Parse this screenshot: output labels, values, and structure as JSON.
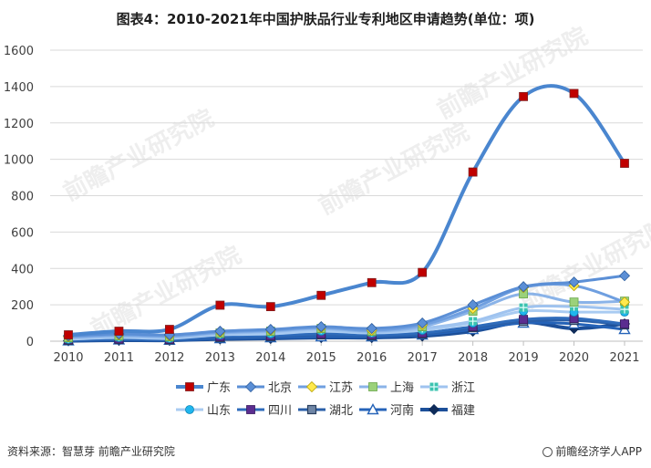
{
  "title": "图表4：2010-2021年中国护肤品行业专利地区申请趋势(单位：项)",
  "source": "资料来源：智慧芽 前瞻产业研究院",
  "brand": "前瞻经济学人APP",
  "watermark": "前瞻产业研究院",
  "chart_data": {
    "type": "line",
    "title": "图表4：2010-2021年中国护肤品行业专利地区申请趋势(单位：项)",
    "xlabel": "",
    "ylabel": "",
    "x": [
      "2010",
      "2011",
      "2012",
      "2013",
      "2014",
      "2015",
      "2016",
      "2017",
      "2018",
      "2019",
      "2020",
      "2021"
    ],
    "ylim": [
      0,
      1600
    ],
    "yticks": [
      0,
      200,
      400,
      600,
      800,
      1000,
      1200,
      1400,
      1600
    ],
    "grid": true,
    "legend": "bottom",
    "series": [
      {
        "name": "广东",
        "color": "#4a86cf",
        "marker": "square-red",
        "width": 4,
        "values": [
          35,
          55,
          65,
          198,
          190,
          252,
          322,
          378,
          930,
          1345,
          1362,
          978
        ]
      },
      {
        "name": "北京",
        "color": "#5b8fd6",
        "marker": "diamond-blue",
        "width": 3,
        "values": [
          30,
          40,
          35,
          55,
          65,
          80,
          70,
          100,
          200,
          300,
          325,
          360
        ]
      },
      {
        "name": "江苏",
        "color": "#6f9fe0",
        "marker": "diamond-yellow",
        "width": 3,
        "values": [
          25,
          35,
          30,
          50,
          60,
          75,
          60,
          90,
          180,
          295,
          305,
          215
        ]
      },
      {
        "name": "上海",
        "color": "#8ab3e8",
        "marker": "square-green",
        "width": 3,
        "values": [
          20,
          30,
          25,
          45,
          55,
          70,
          55,
          80,
          165,
          260,
          215,
          220
        ]
      },
      {
        "name": "浙江",
        "color": "#9fc3ef",
        "marker": "star-teal",
        "width": 3,
        "values": [
          15,
          25,
          20,
          40,
          50,
          65,
          50,
          70,
          110,
          185,
          190,
          175
        ]
      },
      {
        "name": "山东",
        "color": "#a9cbf2",
        "marker": "circle-cyan",
        "width": 3,
        "values": [
          10,
          20,
          15,
          35,
          40,
          55,
          45,
          60,
          100,
          165,
          160,
          160
        ]
      },
      {
        "name": "四川",
        "color": "#2e6bbb",
        "marker": "square-purple",
        "width": 3,
        "values": [
          8,
          12,
          10,
          25,
          30,
          40,
          35,
          45,
          80,
          120,
          125,
          95
        ]
      },
      {
        "name": "湖北",
        "color": "#2a5fa8",
        "marker": "square-slate",
        "width": 3,
        "values": [
          5,
          10,
          8,
          20,
          25,
          35,
          30,
          40,
          75,
          110,
          115,
          90
        ]
      },
      {
        "name": "河南",
        "color": "#2563b8",
        "marker": "triangle-white",
        "width": 3,
        "values": [
          3,
          8,
          6,
          15,
          20,
          25,
          25,
          35,
          65,
          100,
          95,
          65
        ]
      },
      {
        "name": "福建",
        "color": "#1c4f99",
        "marker": "diamond-navy",
        "width": 4,
        "values": [
          2,
          5,
          5,
          12,
          15,
          20,
          20,
          28,
          55,
          105,
          70,
          95
        ]
      }
    ]
  }
}
